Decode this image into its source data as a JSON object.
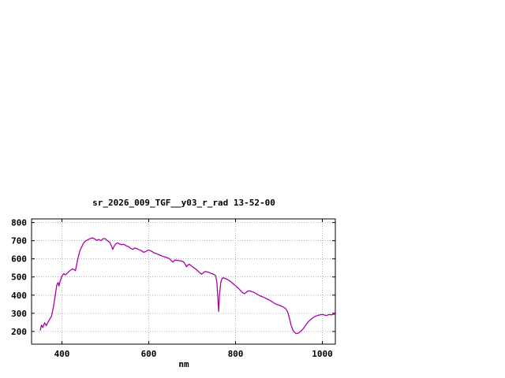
{
  "chart_data": {
    "type": "line",
    "title": "sr_2026_009_TGF__y03_r_rad 13-52-00",
    "xlabel": "nm",
    "ylabel": "",
    "xlim": [
      330,
      1030
    ],
    "ylim": [
      130,
      820
    ],
    "xticks": [
      400,
      600,
      800,
      1000
    ],
    "yticks": [
      200,
      300,
      400,
      500,
      600,
      700,
      800
    ],
    "grid": true,
    "legend": "none",
    "line_color": "#aa00aa",
    "grid_color": "#b4b4b4",
    "series": [
      {
        "name": "sr_2026_009_TGF__y03_r_rad",
        "points": [
          [
            350,
            205
          ],
          [
            353,
            235
          ],
          [
            356,
            222
          ],
          [
            360,
            248
          ],
          [
            364,
            232
          ],
          [
            368,
            252
          ],
          [
            372,
            268
          ],
          [
            376,
            285
          ],
          [
            380,
            330
          ],
          [
            384,
            390
          ],
          [
            388,
            455
          ],
          [
            391,
            470
          ],
          [
            393,
            450
          ],
          [
            396,
            478
          ],
          [
            400,
            505
          ],
          [
            404,
            518
          ],
          [
            408,
            512
          ],
          [
            412,
            520
          ],
          [
            416,
            530
          ],
          [
            420,
            538
          ],
          [
            424,
            545
          ],
          [
            428,
            540
          ],
          [
            431,
            535
          ],
          [
            434,
            570
          ],
          [
            438,
            615
          ],
          [
            442,
            648
          ],
          [
            446,
            668
          ],
          [
            450,
            688
          ],
          [
            455,
            700
          ],
          [
            460,
            706
          ],
          [
            465,
            712
          ],
          [
            470,
            716
          ],
          [
            475,
            710
          ],
          [
            480,
            702
          ],
          [
            485,
            707
          ],
          [
            490,
            700
          ],
          [
            495,
            712
          ],
          [
            500,
            710
          ],
          [
            505,
            700
          ],
          [
            510,
            692
          ],
          [
            514,
            672
          ],
          [
            517,
            652
          ],
          [
            520,
            668
          ],
          [
            524,
            682
          ],
          [
            528,
            688
          ],
          [
            533,
            682
          ],
          [
            538,
            678
          ],
          [
            543,
            680
          ],
          [
            548,
            672
          ],
          [
            553,
            668
          ],
          [
            558,
            658
          ],
          [
            563,
            652
          ],
          [
            568,
            660
          ],
          [
            573,
            656
          ],
          [
            578,
            650
          ],
          [
            583,
            645
          ],
          [
            588,
            636
          ],
          [
            593,
            640
          ],
          [
            598,
            648
          ],
          [
            603,
            646
          ],
          [
            608,
            640
          ],
          [
            613,
            632
          ],
          [
            618,
            628
          ],
          [
            623,
            623
          ],
          [
            628,
            618
          ],
          [
            633,
            613
          ],
          [
            638,
            610
          ],
          [
            643,
            606
          ],
          [
            648,
            600
          ],
          [
            653,
            588
          ],
          [
            656,
            582
          ],
          [
            660,
            594
          ],
          [
            665,
            592
          ],
          [
            670,
            590
          ],
          [
            675,
            588
          ],
          [
            680,
            584
          ],
          [
            684,
            570
          ],
          [
            687,
            556
          ],
          [
            690,
            566
          ],
          [
            694,
            570
          ],
          [
            698,
            562
          ],
          [
            702,
            555
          ],
          [
            706,
            548
          ],
          [
            710,
            540
          ],
          [
            714,
            532
          ],
          [
            718,
            522
          ],
          [
            722,
            516
          ],
          [
            726,
            524
          ],
          [
            730,
            530
          ],
          [
            734,
            528
          ],
          [
            738,
            526
          ],
          [
            742,
            522
          ],
          [
            746,
            518
          ],
          [
            750,
            514
          ],
          [
            754,
            508
          ],
          [
            757,
            470
          ],
          [
            759,
            390
          ],
          [
            761,
            310
          ],
          [
            763,
            400
          ],
          [
            766,
            470
          ],
          [
            769,
            492
          ],
          [
            772,
            496
          ],
          [
            776,
            492
          ],
          [
            780,
            488
          ],
          [
            784,
            482
          ],
          [
            788,
            476
          ],
          [
            792,
            468
          ],
          [
            796,
            460
          ],
          [
            800,
            452
          ],
          [
            804,
            443
          ],
          [
            808,
            434
          ],
          [
            812,
            424
          ],
          [
            816,
            414
          ],
          [
            820,
            408
          ],
          [
            824,
            414
          ],
          [
            828,
            422
          ],
          [
            832,
            424
          ],
          [
            836,
            420
          ],
          [
            840,
            418
          ],
          [
            844,
            413
          ],
          [
            848,
            408
          ],
          [
            852,
            402
          ],
          [
            856,
            397
          ],
          [
            860,
            393
          ],
          [
            864,
            389
          ],
          [
            868,
            385
          ],
          [
            872,
            380
          ],
          [
            876,
            375
          ],
          [
            880,
            370
          ],
          [
            884,
            364
          ],
          [
            888,
            358
          ],
          [
            892,
            352
          ],
          [
            896,
            348
          ],
          [
            900,
            345
          ],
          [
            904,
            341
          ],
          [
            908,
            337
          ],
          [
            912,
            332
          ],
          [
            916,
            324
          ],
          [
            920,
            308
          ],
          [
            924,
            275
          ],
          [
            928,
            235
          ],
          [
            932,
            208
          ],
          [
            936,
            195
          ],
          [
            940,
            188
          ],
          [
            944,
            190
          ],
          [
            948,
            196
          ],
          [
            952,
            205
          ],
          [
            956,
            215
          ],
          [
            960,
            228
          ],
          [
            964,
            242
          ],
          [
            968,
            254
          ],
          [
            972,
            263
          ],
          [
            976,
            271
          ],
          [
            980,
            278
          ],
          [
            984,
            283
          ],
          [
            988,
            287
          ],
          [
            992,
            290
          ],
          [
            996,
            292
          ],
          [
            1000,
            293
          ],
          [
            1004,
            291
          ],
          [
            1008,
            288
          ],
          [
            1012,
            290
          ],
          [
            1016,
            293
          ],
          [
            1020,
            291
          ],
          [
            1024,
            293
          ],
          [
            1030,
            296
          ]
        ]
      }
    ]
  }
}
